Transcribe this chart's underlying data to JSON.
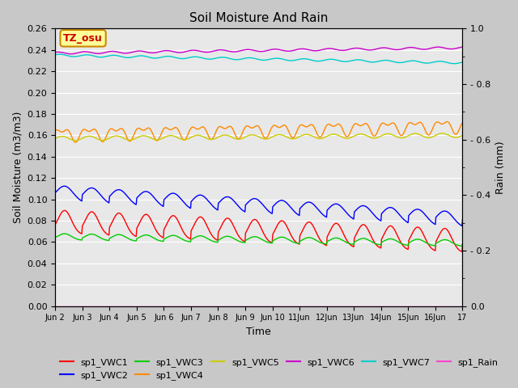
{
  "title": "Soil Moisture And Rain",
  "xlabel": "Time",
  "ylabel_left": "Soil Moisture (m3/m3)",
  "ylabel_right": "Rain (mm)",
  "ylim_left": [
    0.0,
    0.26
  ],
  "ylim_right": [
    0.0,
    1.0
  ],
  "fig_facecolor": "#c8c8c8",
  "plot_bg_color": "#e8e8e8",
  "annotation_text": "TZ_osu",
  "annotation_bg": "#ffff99",
  "annotation_border": "#cc8800",
  "annotation_text_color": "#cc0000",
  "series_colors": {
    "sp1_VWC1": "#ff0000",
    "sp1_VWC2": "#0000ff",
    "sp1_VWC3": "#00cc00",
    "sp1_VWC4": "#ff8800",
    "sp1_VWC5": "#cccc00",
    "sp1_VWC6": "#cc00cc",
    "sp1_VWC7": "#00cccc",
    "sp1_Rain": "#ff44cc"
  },
  "n_points": 720,
  "start_day": 2.0,
  "end_day": 17.0
}
